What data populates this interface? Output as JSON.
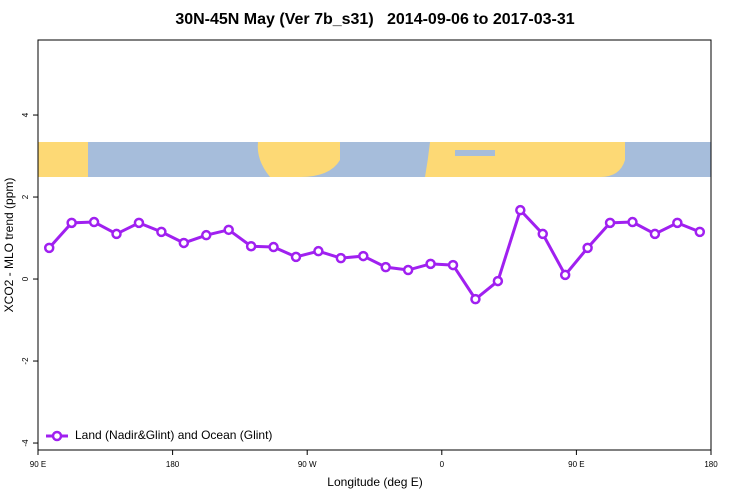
{
  "chart_data": {
    "type": "line",
    "title": "30N-45N May (Ver 7b_s31)   2014-09-06 to 2017-03-31",
    "x_label": "Longitude (deg E)",
    "y_label": "XCO2 - MLO trend (ppm)",
    "x": [
      97.5,
      112.5,
      127.5,
      142.5,
      157.5,
      172.5,
      187.5,
      202.5,
      217.5,
      232.5,
      247.5,
      262.5,
      277.5,
      292.5,
      307.5,
      322.5,
      337.5,
      352.5,
      367.5,
      382.5,
      397.5,
      412.5,
      427.5,
      442.5,
      457.5,
      472.5,
      487.5,
      502.5,
      517.5,
      532.5
    ],
    "series": [
      {
        "name": "Land (Nadir&Glint) and Ocean (Glint)",
        "color": "#a020f0",
        "values": [
          0.76,
          1.37,
          1.39,
          1.1,
          1.37,
          1.15,
          0.88,
          1.07,
          1.2,
          0.8,
          0.78,
          0.54,
          0.68,
          0.51,
          0.56,
          0.29,
          0.22,
          0.37,
          0.34,
          -0.49,
          -0.05,
          1.68,
          1.1,
          0.1,
          0.76,
          1.37,
          1.39,
          1.1,
          1.37,
          1.15
        ]
      }
    ],
    "xlim": [
      90,
      540
    ],
    "xticks": [
      {
        "value": 90,
        "label": "90 E"
      },
      {
        "value": 180,
        "label": "180"
      },
      {
        "value": 270,
        "label": "90 W"
      },
      {
        "value": 360,
        "label": "0"
      },
      {
        "value": 450,
        "label": "90 E"
      },
      {
        "value": 540,
        "label": "180"
      }
    ],
    "ylim": [
      -4.17,
      5.83
    ],
    "yticks": [
      -4,
      -2,
      0,
      2,
      4
    ],
    "legend": "bottom-left"
  }
}
